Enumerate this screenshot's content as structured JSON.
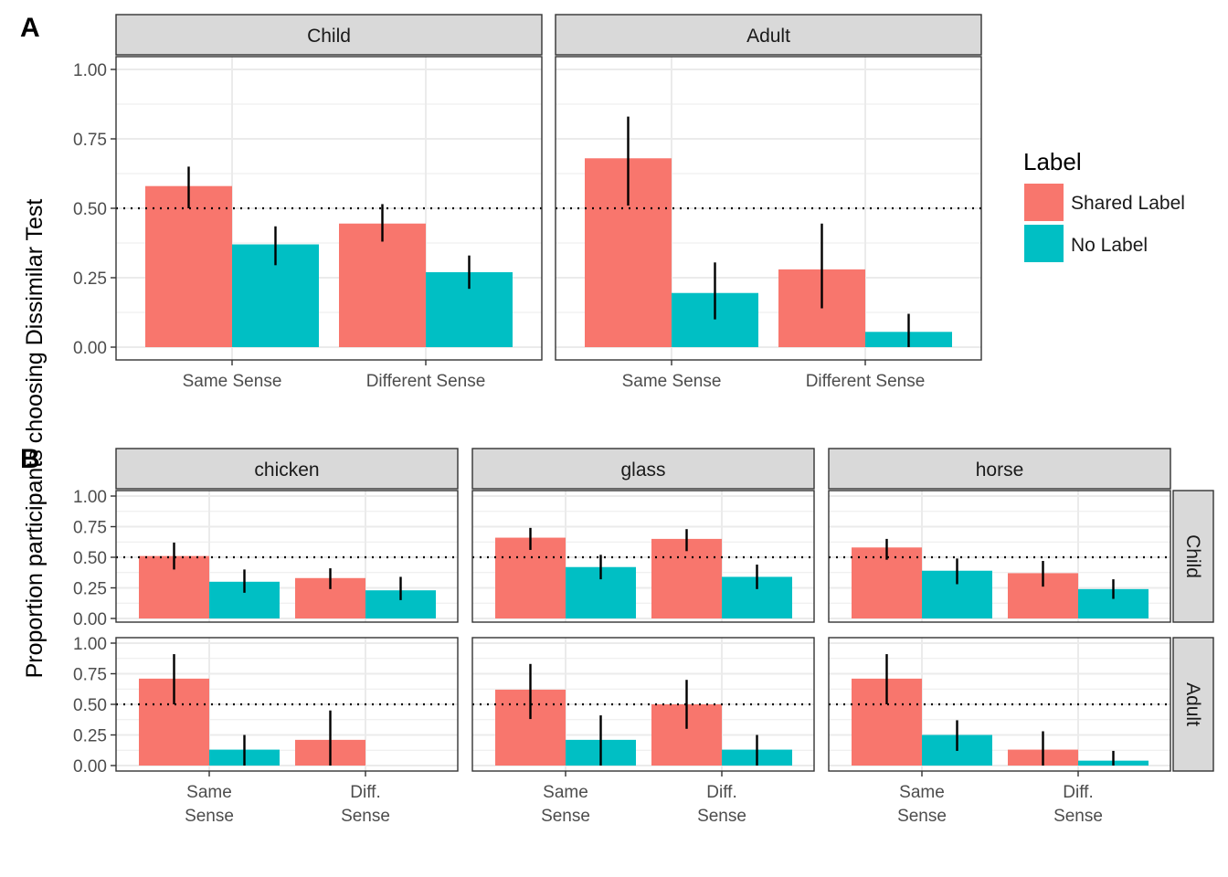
{
  "chart_data": {
    "type": "bar",
    "colors": {
      "Shared Label": "#F8766D",
      "No Label": "#00BFC4"
    },
    "reference_line": 0.5,
    "ylim": [
      0,
      1
    ],
    "y_ticks": [
      "0.00",
      "0.25",
      "0.50",
      "0.75",
      "1.00"
    ],
    "ylabel": "Proportion participants choosing Dissimilar Test",
    "legend": {
      "title": "Label",
      "placement": "right",
      "entries": [
        "Shared Label",
        "No Label"
      ]
    },
    "panels": [
      {
        "tag": "A",
        "facets": [
          {
            "strip": "Child",
            "categories": [
              "Same Sense",
              "Different Sense"
            ],
            "series": [
              {
                "name": "Shared Label",
                "values": [
                  0.58,
                  0.445
                ],
                "err_low": [
                  0.5,
                  0.38
                ],
                "err_high": [
                  0.65,
                  0.515
                ]
              },
              {
                "name": "No Label",
                "values": [
                  0.37,
                  0.27
                ],
                "err_low": [
                  0.295,
                  0.21
                ],
                "err_high": [
                  0.435,
                  0.33
                ]
              }
            ]
          },
          {
            "strip": "Adult",
            "categories": [
              "Same Sense",
              "Different Sense"
            ],
            "series": [
              {
                "name": "Shared Label",
                "values": [
                  0.68,
                  0.28
                ],
                "err_low": [
                  0.51,
                  0.14
                ],
                "err_high": [
                  0.83,
                  0.445
                ]
              },
              {
                "name": "No Label",
                "values": [
                  0.195,
                  0.055
                ],
                "err_low": [
                  0.1,
                  0.0
                ],
                "err_high": [
                  0.305,
                  0.12
                ]
              }
            ]
          }
        ]
      },
      {
        "tag": "B",
        "col_strips": [
          "chicken",
          "glass",
          "horse"
        ],
        "row_strips": [
          "Child",
          "Adult"
        ],
        "categories": [
          "Same\nSense",
          "Diff.\nSense"
        ],
        "facets": [
          {
            "col": "chicken",
            "row": "Child",
            "series": [
              {
                "name": "Shared Label",
                "values": [
                  0.51,
                  0.33
                ],
                "err_low": [
                  0.4,
                  0.24
                ],
                "err_high": [
                  0.62,
                  0.41
                ]
              },
              {
                "name": "No Label",
                "values": [
                  0.3,
                  0.23
                ],
                "err_low": [
                  0.21,
                  0.15
                ],
                "err_high": [
                  0.4,
                  0.34
                ]
              }
            ]
          },
          {
            "col": "glass",
            "row": "Child",
            "series": [
              {
                "name": "Shared Label",
                "values": [
                  0.66,
                  0.65
                ],
                "err_low": [
                  0.56,
                  0.55
                ],
                "err_high": [
                  0.74,
                  0.73
                ]
              },
              {
                "name": "No Label",
                "values": [
                  0.42,
                  0.34
                ],
                "err_low": [
                  0.32,
                  0.24
                ],
                "err_high": [
                  0.52,
                  0.44
                ]
              }
            ]
          },
          {
            "col": "horse",
            "row": "Child",
            "series": [
              {
                "name": "Shared Label",
                "values": [
                  0.58,
                  0.37
                ],
                "err_low": [
                  0.48,
                  0.26
                ],
                "err_high": [
                  0.65,
                  0.47
                ]
              },
              {
                "name": "No Label",
                "values": [
                  0.39,
                  0.24
                ],
                "err_low": [
                  0.28,
                  0.16
                ],
                "err_high": [
                  0.49,
                  0.32
                ]
              }
            ]
          },
          {
            "col": "chicken",
            "row": "Adult",
            "series": [
              {
                "name": "Shared Label",
                "values": [
                  0.71,
                  0.21
                ],
                "err_low": [
                  0.5,
                  0.0
                ],
                "err_high": [
                  0.91,
                  0.45
                ]
              },
              {
                "name": "No Label",
                "values": [
                  0.13,
                  0.0
                ],
                "err_low": [
                  0.0,
                  0.0
                ],
                "err_high": [
                  0.25,
                  0.0
                ]
              }
            ]
          },
          {
            "col": "glass",
            "row": "Adult",
            "series": [
              {
                "name": "Shared Label",
                "values": [
                  0.62,
                  0.5
                ],
                "err_low": [
                  0.38,
                  0.3
                ],
                "err_high": [
                  0.83,
                  0.7
                ]
              },
              {
                "name": "No Label",
                "values": [
                  0.21,
                  0.13
                ],
                "err_low": [
                  0.0,
                  0.0
                ],
                "err_high": [
                  0.41,
                  0.25
                ]
              }
            ]
          },
          {
            "col": "horse",
            "row": "Adult",
            "series": [
              {
                "name": "Shared Label",
                "values": [
                  0.71,
                  0.13
                ],
                "err_low": [
                  0.5,
                  0.0
                ],
                "err_high": [
                  0.91,
                  0.28
                ]
              },
              {
                "name": "No Label",
                "values": [
                  0.25,
                  0.04
                ],
                "err_low": [
                  0.12,
                  0.0
                ],
                "err_high": [
                  0.37,
                  0.12
                ]
              }
            ]
          }
        ]
      }
    ]
  }
}
